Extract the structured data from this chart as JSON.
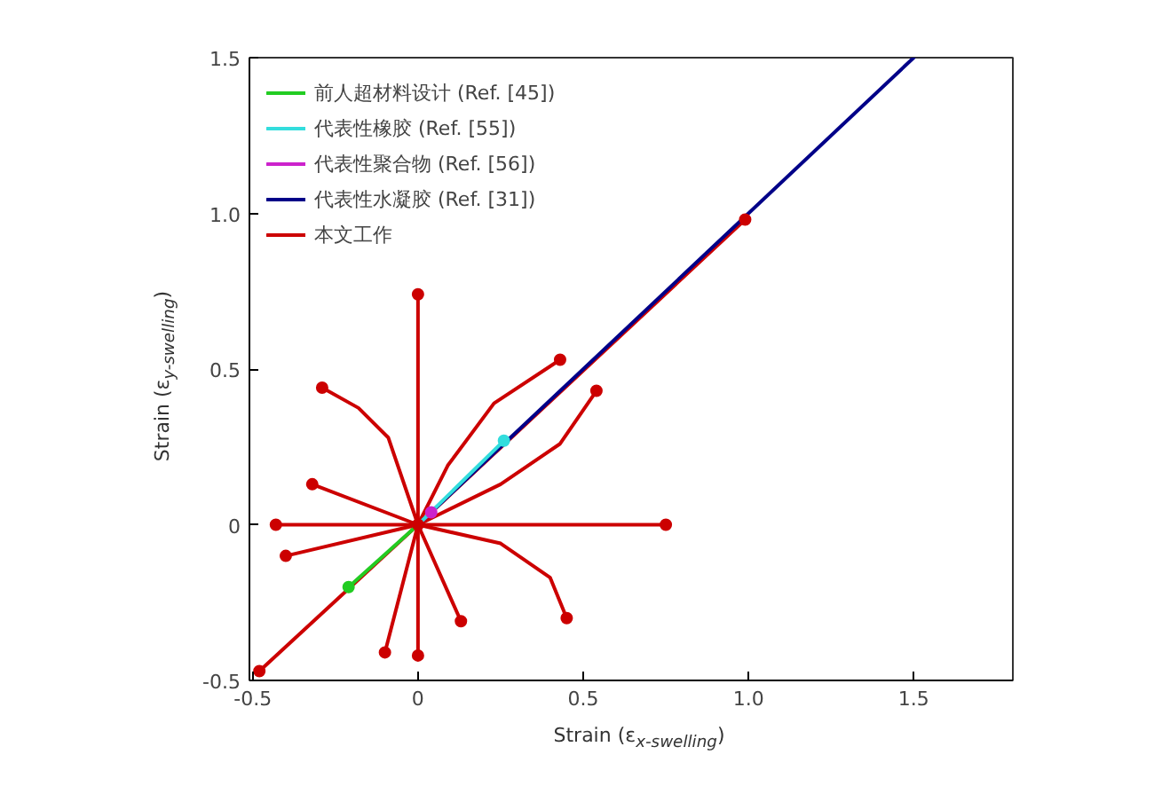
{
  "chart_data": {
    "type": "line",
    "xlabel": "Strain (ε$_{x-swelling}$)",
    "ylabel": "Strain (ε$_{y-swelling}$)",
    "xlim": [
      -0.51,
      1.8
    ],
    "ylim": [
      -0.5,
      1.5
    ],
    "xticks": [
      -0.5,
      0,
      0.5,
      {
        "value": 1,
        "label": "1.0"
      },
      1.5
    ],
    "yticks": [
      -0.5,
      0,
      0.5,
      {
        "value": 1,
        "label": "1.0"
      },
      1.5
    ],
    "legend": "top left",
    "grid": false,
    "line_style": "solid",
    "series": [
      {
        "name": "前人超材料设计 (Ref. [45])",
        "color": "#22cc22",
        "x": [
          0,
          -0.21
        ],
        "values": [
          0,
          -0.2
        ]
      },
      {
        "name": "代表性橡胶 (Ref. [55])",
        "color": "#33dddd",
        "x": [
          0,
          0.26
        ],
        "values": [
          0,
          0.27
        ]
      },
      {
        "name": "代表性聚合物 (Ref. [56])",
        "color": "#cc22cc",
        "x": [
          0,
          0.04
        ],
        "values": [
          0,
          0.04
        ]
      },
      {
        "name": "代表性水凝胶 (Ref. [31])",
        "color": "#000088",
        "x": [
          0,
          1.5
        ],
        "values": [
          0,
          1.5
        ]
      },
      {
        "name": "本文工作",
        "color": "#cc0000",
        "x": [
          -0.48,
          0,
          0.99
        ],
        "values": [
          -0.47,
          0,
          0.98
        ]
      },
      {
        "color": "#cc0000",
        "x": [
          0,
          0,
          0
        ],
        "values": [
          0,
          0.4,
          0.74
        ]
      },
      {
        "color": "#cc0000",
        "x": [
          0,
          0.09,
          0.23,
          0.43
        ],
        "values": [
          0,
          0.19,
          0.39,
          0.53
        ]
      },
      {
        "color": "#cc0000",
        "x": [
          0,
          0.25,
          0.43,
          0.54
        ],
        "values": [
          0,
          0.13,
          0.26,
          0.43
        ]
      },
      {
        "color": "#cc0000",
        "x": [
          0,
          -0.09,
          -0.18,
          -0.29
        ],
        "values": [
          0,
          0.28,
          0.375,
          0.44
        ]
      },
      {
        "color": "#cc0000",
        "x": [
          0,
          -0.32
        ],
        "values": [
          0,
          0.13
        ]
      },
      {
        "color": "#cc0000",
        "x": [
          0,
          -0.43
        ],
        "values": [
          0,
          0
        ]
      },
      {
        "color": "#cc0000",
        "x": [
          0,
          0.75
        ],
        "values": [
          0,
          0
        ]
      },
      {
        "color": "#cc0000",
        "x": [
          0,
          -0.4
        ],
        "values": [
          0,
          -0.1
        ]
      },
      {
        "color": "#cc0000",
        "x": [
          0,
          0.25,
          0.4,
          0.45
        ],
        "values": [
          0,
          -0.06,
          -0.17,
          -0.3
        ]
      },
      {
        "color": "#cc0000",
        "x": [
          0,
          0.13
        ],
        "values": [
          0,
          -0.31
        ]
      },
      {
        "color": "#cc0000",
        "x": [
          0,
          -0.1
        ],
        "values": [
          0,
          -0.41
        ]
      },
      {
        "color": "#cc0000",
        "x": [
          0,
          0
        ],
        "values": [
          0,
          -0.42
        ]
      },
      {
        "type": "scatter",
        "color": "#cc0000",
        "marker": "circle",
        "x": [
          0,
          0.99,
          -0.48,
          0,
          0.43,
          0.54,
          -0.29,
          -0.32,
          -0.43,
          0.75,
          -0.4,
          0.45,
          0.13,
          -0.1,
          0
        ],
        "values": [
          0,
          0.98,
          -0.47,
          0.74,
          0.53,
          0.43,
          0.44,
          0.13,
          0,
          0,
          -0.1,
          -0.3,
          -0.31,
          -0.41,
          -0.42
        ]
      },
      {
        "type": "scatter",
        "color": "#22cc22",
        "marker": "circle",
        "x": [
          -0.21
        ],
        "values": [
          -0.2
        ]
      },
      {
        "type": "scatter",
        "color": "#33dddd",
        "marker": "circle",
        "x": [
          0.26
        ],
        "values": [
          0.27
        ]
      },
      {
        "type": "scatter",
        "color": "#cc22cc",
        "marker": "circle",
        "x": [
          0.04
        ],
        "values": [
          0.04
        ]
      }
    ]
  }
}
